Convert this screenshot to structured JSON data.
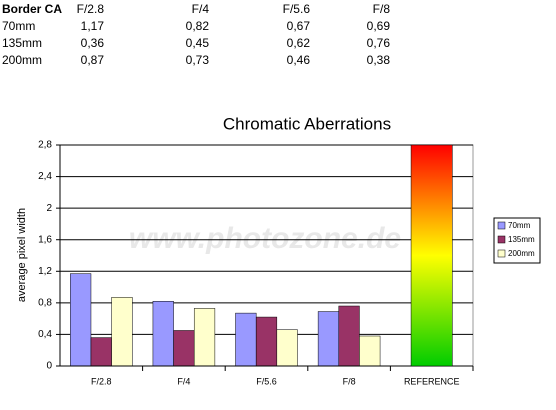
{
  "table": {
    "header": [
      "Border CA",
      "F/2.8",
      "F/4",
      "F/5.6",
      "F/8"
    ],
    "rows": [
      [
        "70mm",
        "1,17",
        "0,82",
        "0,67",
        "0,69"
      ],
      [
        "135mm",
        "0,36",
        "0,45",
        "0,62",
        "0,76"
      ],
      [
        "200mm",
        "0,87",
        "0,73",
        "0,46",
        "0,38"
      ]
    ]
  },
  "chart_data": {
    "type": "bar",
    "title": "Chromatic Aberrations",
    "ylabel": "average pixel width",
    "watermark": "www.photozone.de",
    "categories": [
      "F/2.8",
      "F/4",
      "F/5.6",
      "F/8",
      "REFERENCE"
    ],
    "series": [
      {
        "name": "70mm",
        "color": "#9999ff",
        "values": [
          1.17,
          0.82,
          0.67,
          0.69,
          null
        ]
      },
      {
        "name": "135mm",
        "color": "#993366",
        "values": [
          0.36,
          0.45,
          0.62,
          0.76,
          null
        ]
      },
      {
        "name": "200mm",
        "color": "#ffffcc",
        "values": [
          0.87,
          0.73,
          0.46,
          0.38,
          null
        ]
      }
    ],
    "reference_value": 2.8,
    "reference_colors": [
      "#ff0000",
      "#ffff00",
      "#00cc00"
    ],
    "ylim": [
      0,
      2.8
    ],
    "yticks": [
      0,
      {
        "value": 0.4,
        "label": "0,4"
      },
      {
        "value": 0.8,
        "label": "0,8"
      },
      {
        "value": 1.2,
        "label": "1,2"
      },
      {
        "value": 1.6,
        "label": "1,6"
      },
      2,
      {
        "value": 2.4,
        "label": "2,4"
      },
      {
        "value": 2.8,
        "label": "2,8"
      }
    ],
    "grid": true
  }
}
